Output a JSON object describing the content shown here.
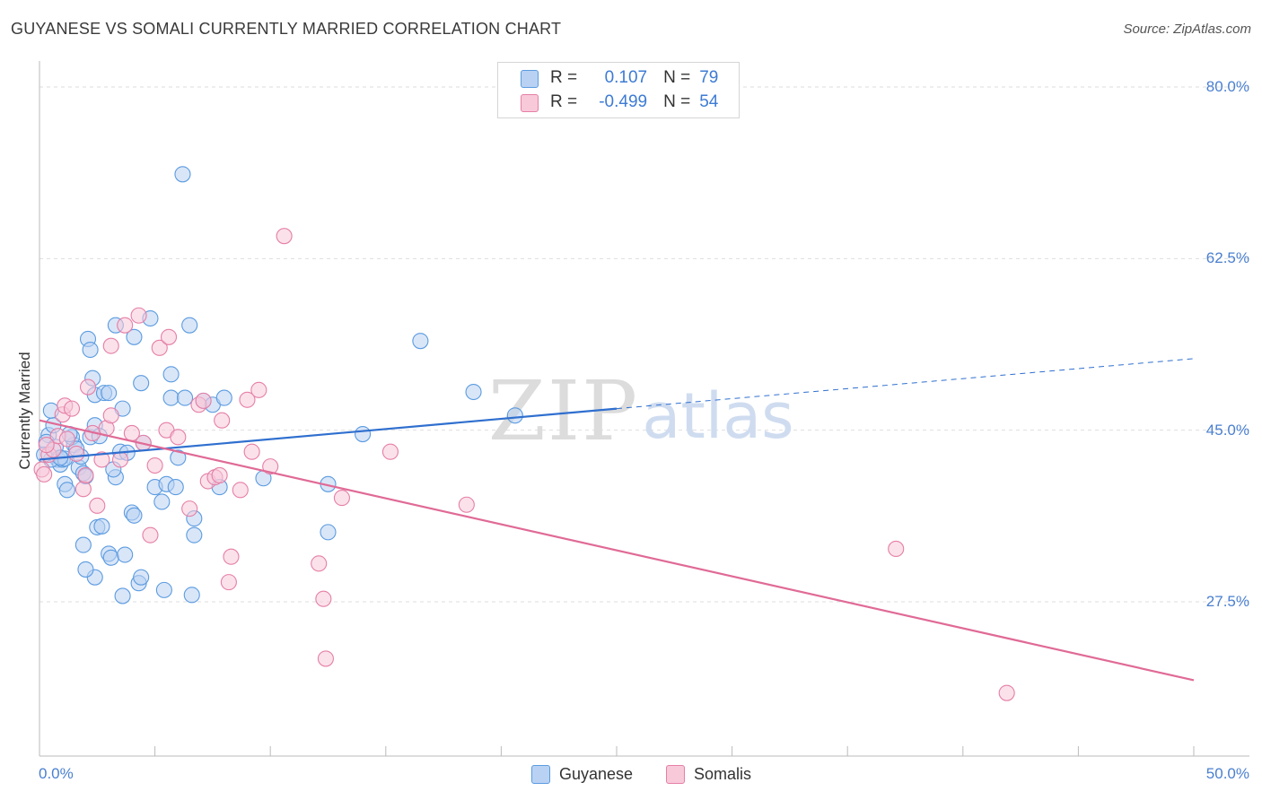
{
  "title": "GUYANESE VS SOMALI CURRENTLY MARRIED CORRELATION CHART",
  "source": "Source: ZipAtlas.com",
  "watermark": {
    "zip": "ZIP",
    "atlas": "atlas"
  },
  "stats": [
    {
      "r_label": "R =",
      "r": "0.107",
      "n_label": "N =",
      "n": "79",
      "color": "#5b9be0",
      "fill": "#b9d2f3"
    },
    {
      "r_label": "R =",
      "r": "-0.499",
      "n_label": "N =",
      "n": "54",
      "color": "#e57fa6",
      "fill": "#f8c9d9"
    }
  ],
  "legend": [
    {
      "label": "Guyanese",
      "color": "#5b9be0",
      "fill": "#b9d2f3"
    },
    {
      "label": "Somalis",
      "color": "#e57fa6",
      "fill": "#f8c9d9"
    }
  ],
  "chart_data": {
    "type": "scatter",
    "title": "GUYANESE VS SOMALI CURRENTLY MARRIED CORRELATION CHART",
    "xlabel": "",
    "ylabel": "Currently Married",
    "xlim": [
      0,
      50
    ],
    "ylim": [
      10,
      80
    ],
    "x_tick_labels": [
      "0.0%",
      "50.0%"
    ],
    "y_ticks": [
      27.5,
      45.0,
      62.5,
      80.0
    ],
    "y_tick_labels": [
      "27.5%",
      "45.0%",
      "62.5%",
      "80.0%"
    ],
    "grid": true,
    "legend_position": "bottom-center",
    "series": [
      {
        "name": "Guyanese",
        "color": "#5b9be0",
        "fill": "#b9d2f3",
        "r": 0.107,
        "n": 79,
        "trend": {
          "x": [
            0,
            25
          ],
          "y": [
            42.0,
            47.2
          ],
          "dashed_to": [
            50,
            52.3
          ]
        },
        "points": [
          [
            0.4,
            44.5
          ],
          [
            0.6,
            45.5
          ],
          [
            0.5,
            47.0
          ],
          [
            0.3,
            43.8
          ],
          [
            0.8,
            42.0
          ],
          [
            0.9,
            41.5
          ],
          [
            1.0,
            42.0
          ],
          [
            1.1,
            39.5
          ],
          [
            1.2,
            38.9
          ],
          [
            1.5,
            43.5
          ],
          [
            1.4,
            44.3
          ],
          [
            1.7,
            41.2
          ],
          [
            1.8,
            42.3
          ],
          [
            1.9,
            40.6
          ],
          [
            2.0,
            40.3
          ],
          [
            2.2,
            44.3
          ],
          [
            2.4,
            45.5
          ],
          [
            2.1,
            54.3
          ],
          [
            2.2,
            53.2
          ],
          [
            2.3,
            50.3
          ],
          [
            2.4,
            48.6
          ],
          [
            2.8,
            48.8
          ],
          [
            3.0,
            48.8
          ],
          [
            3.6,
            47.2
          ],
          [
            3.3,
            55.7
          ],
          [
            4.1,
            54.5
          ],
          [
            4.4,
            49.8
          ],
          [
            4.8,
            56.4
          ],
          [
            5.7,
            48.3
          ],
          [
            5.3,
            37.7
          ],
          [
            5.0,
            39.2
          ],
          [
            5.5,
            39.5
          ],
          [
            5.9,
            39.2
          ],
          [
            6.0,
            42.2
          ],
          [
            5.7,
            50.7
          ],
          [
            6.2,
            71.1
          ],
          [
            6.3,
            48.3
          ],
          [
            6.5,
            55.7
          ],
          [
            7.1,
            48.0
          ],
          [
            7.5,
            47.6
          ],
          [
            8.0,
            48.3
          ],
          [
            7.8,
            39.2
          ],
          [
            3.5,
            42.8
          ],
          [
            3.3,
            40.2
          ],
          [
            3.2,
            41.0
          ],
          [
            2.5,
            35.1
          ],
          [
            2.7,
            35.2
          ],
          [
            2.4,
            30.0
          ],
          [
            3.0,
            32.4
          ],
          [
            3.1,
            32.0
          ],
          [
            3.7,
            32.3
          ],
          [
            3.6,
            28.1
          ],
          [
            4.0,
            36.6
          ],
          [
            4.1,
            36.3
          ],
          [
            4.3,
            29.4
          ],
          [
            4.4,
            30.0
          ],
          [
            5.4,
            28.7
          ],
          [
            6.6,
            28.2
          ],
          [
            6.7,
            34.3
          ],
          [
            6.7,
            36.0
          ],
          [
            1.9,
            33.3
          ],
          [
            2.0,
            30.8
          ],
          [
            1.3,
            44.6
          ],
          [
            1.6,
            43.1
          ],
          [
            0.5,
            42.0
          ],
          [
            0.2,
            42.5
          ],
          [
            9.7,
            40.1
          ],
          [
            12.5,
            39.5
          ],
          [
            12.5,
            34.6
          ],
          [
            14.0,
            44.6
          ],
          [
            16.5,
            54.1
          ],
          [
            18.8,
            48.9
          ],
          [
            20.6,
            46.5
          ],
          [
            0.7,
            43.3
          ],
          [
            1.1,
            42.1
          ],
          [
            2.6,
            44.4
          ],
          [
            3.8,
            42.7
          ],
          [
            4.5,
            43.7
          ],
          [
            0.9,
            42.2
          ]
        ]
      },
      {
        "name": "Somalis",
        "color": "#e57fa6",
        "fill": "#f8c9d9",
        "r": -0.499,
        "n": 54,
        "trend": {
          "x": [
            0,
            50
          ],
          "y": [
            46.0,
            19.5
          ]
        },
        "points": [
          [
            0.1,
            41.0
          ],
          [
            0.4,
            42.5
          ],
          [
            0.6,
            43.0
          ],
          [
            0.8,
            44.4
          ],
          [
            1.0,
            46.6
          ],
          [
            1.1,
            47.5
          ],
          [
            1.4,
            47.2
          ],
          [
            1.6,
            42.6
          ],
          [
            1.9,
            39.0
          ],
          [
            2.0,
            40.4
          ],
          [
            2.1,
            49.4
          ],
          [
            2.3,
            44.7
          ],
          [
            2.5,
            37.3
          ],
          [
            2.7,
            42.0
          ],
          [
            2.9,
            45.2
          ],
          [
            3.1,
            46.5
          ],
          [
            3.1,
            53.6
          ],
          [
            3.5,
            42.0
          ],
          [
            3.7,
            55.7
          ],
          [
            4.0,
            44.7
          ],
          [
            4.3,
            56.7
          ],
          [
            4.5,
            43.7
          ],
          [
            4.8,
            34.3
          ],
          [
            5.0,
            41.4
          ],
          [
            5.2,
            53.4
          ],
          [
            5.5,
            45.0
          ],
          [
            5.6,
            54.5
          ],
          [
            6.0,
            44.3
          ],
          [
            6.5,
            37.0
          ],
          [
            6.9,
            47.6
          ],
          [
            7.1,
            48.0
          ],
          [
            7.3,
            39.8
          ],
          [
            7.6,
            40.2
          ],
          [
            7.8,
            40.4
          ],
          [
            7.9,
            46.0
          ],
          [
            8.2,
            29.5
          ],
          [
            8.3,
            32.1
          ],
          [
            8.7,
            38.9
          ],
          [
            9.0,
            48.1
          ],
          [
            9.2,
            42.8
          ],
          [
            9.5,
            49.1
          ],
          [
            10.0,
            41.3
          ],
          [
            10.6,
            64.8
          ],
          [
            12.1,
            31.4
          ],
          [
            12.3,
            27.8
          ],
          [
            12.4,
            21.7
          ],
          [
            13.1,
            38.1
          ],
          [
            15.2,
            42.8
          ],
          [
            18.5,
            37.4
          ],
          [
            37.1,
            32.9
          ],
          [
            41.9,
            18.2
          ],
          [
            0.2,
            40.5
          ],
          [
            0.3,
            43.5
          ],
          [
            1.2,
            44.1
          ]
        ]
      }
    ]
  }
}
